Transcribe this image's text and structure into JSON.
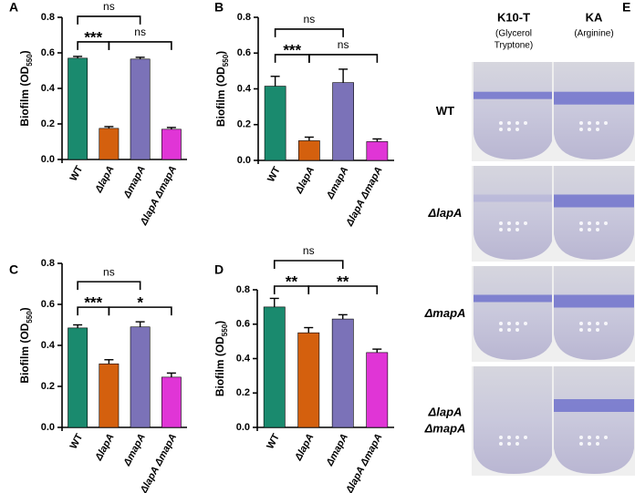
{
  "chart_data": [
    {
      "type": "bar",
      "panel": "A",
      "y_label": [
        "Biofilm (OD",
        "550",
        ")"
      ],
      "categories": [
        "WT",
        "ΔlapA",
        "ΔmapA",
        "ΔlapA ΔmapA"
      ],
      "values": [
        0.57,
        0.175,
        0.565,
        0.17
      ],
      "errors": [
        0.01,
        0.01,
        0.01,
        0.01
      ],
      "colors": [
        "#1a8a6e",
        "#d4600e",
        "#7b72b8",
        "#e035d6"
      ],
      "ylim": [
        0,
        0.8
      ],
      "yticks": [
        {
          "value": 0,
          "label": "0.0"
        },
        0.2,
        0.4,
        0.6,
        0.8
      ],
      "significance": [
        [
          {
            "from": "WT",
            "to": "ΔlapA",
            "label": "***"
          },
          {
            "from": "ΔlapA",
            "to": "ΔlapA ΔmapA",
            "label": "ns"
          }
        ],
        [
          {
            "from": "WT",
            "to": "ΔmapA",
            "label": "ns"
          }
        ]
      ]
    },
    {
      "type": "bar",
      "panel": "B",
      "y_label": [
        "Biofilm (OD",
        "550",
        ")"
      ],
      "categories": [
        "WT",
        "ΔlapA",
        "ΔmapA",
        "ΔlapA ΔmapA"
      ],
      "values": [
        0.415,
        0.11,
        0.435,
        0.105
      ],
      "errors": [
        0.055,
        0.02,
        0.075,
        0.015
      ],
      "colors": [
        "#1a8a6e",
        "#d4600e",
        "#7b72b8",
        "#e035d6"
      ],
      "ylim": [
        0,
        0.8
      ],
      "yticks": [
        {
          "value": 0,
          "label": "0.0"
        },
        0.2,
        0.4,
        0.6,
        0.8
      ],
      "significance": [
        [
          {
            "from": "WT",
            "to": "ΔlapA",
            "label": "***"
          },
          {
            "from": "ΔlapA",
            "to": "ΔlapA ΔmapA",
            "label": "ns"
          }
        ],
        [
          {
            "from": "WT",
            "to": "ΔmapA",
            "label": "ns"
          }
        ]
      ]
    },
    {
      "type": "bar",
      "panel": "C",
      "y_label": [
        "Biofilm (OD",
        "550",
        ")"
      ],
      "categories": [
        "WT",
        "ΔlapA",
        "ΔmapA",
        "ΔlapA ΔmapA"
      ],
      "values": [
        0.485,
        0.31,
        0.49,
        0.245
      ],
      "errors": [
        0.015,
        0.02,
        0.025,
        0.02
      ],
      "colors": [
        "#1a8a6e",
        "#d4600e",
        "#7b72b8",
        "#e035d6"
      ],
      "ylim": [
        0,
        0.8
      ],
      "yticks": [
        {
          "value": 0,
          "label": "0.0"
        },
        0.2,
        0.4,
        0.6,
        0.8
      ],
      "significance": [
        [
          {
            "from": "WT",
            "to": "ΔlapA",
            "label": "***"
          },
          {
            "from": "ΔlapA",
            "to": "ΔlapA ΔmapA",
            "label": "*"
          }
        ],
        [
          {
            "from": "WT",
            "to": "ΔmapA",
            "label": "ns"
          }
        ]
      ]
    },
    {
      "type": "bar",
      "panel": "D",
      "y_label": [
        "Biofilm (OD",
        "550",
        ")"
      ],
      "categories": [
        "WT",
        "ΔlapA",
        "ΔmapA",
        "ΔlapA ΔmapA"
      ],
      "values": [
        0.7,
        0.55,
        0.63,
        0.435
      ],
      "errors": [
        0.05,
        0.03,
        0.025,
        0.02
      ],
      "colors": [
        "#1a8a6e",
        "#d4600e",
        "#7b72b8",
        "#e035d6"
      ],
      "ylim": [
        0,
        0.8
      ],
      "yticks": [
        {
          "value": 0,
          "label": "0.0"
        },
        0.2,
        0.4,
        0.6,
        0.8
      ],
      "significance": [
        [
          {
            "from": "WT",
            "to": "ΔlapA",
            "label": "**"
          },
          {
            "from": "ΔlapA",
            "to": "ΔlapA ΔmapA",
            "label": "**"
          }
        ],
        [
          {
            "from": "WT",
            "to": "ΔmapA",
            "label": "ns"
          }
        ]
      ]
    }
  ],
  "panel_e": {
    "letter": "E",
    "columns": [
      {
        "name": "K10-T",
        "note": [
          "(Glycerol",
          "Tryptone)"
        ]
      },
      {
        "name": "KA",
        "note": [
          "(Arginine)"
        ]
      }
    ],
    "rows": [
      [
        "WT"
      ],
      [
        "ΔlapA"
      ],
      [
        "ΔmapA"
      ],
      [
        "ΔlapA",
        "ΔmapA"
      ]
    ]
  }
}
